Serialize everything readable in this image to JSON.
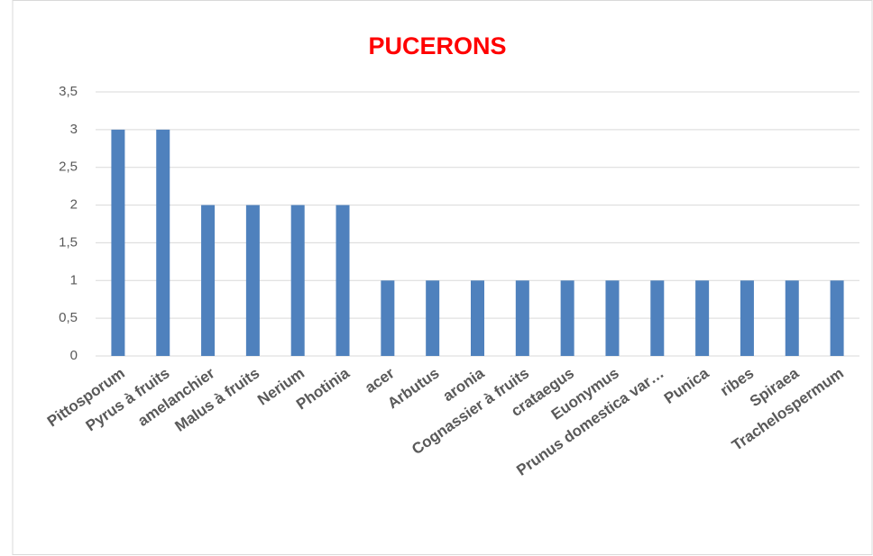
{
  "chart_data": {
    "type": "bar",
    "title": "PUCERONS",
    "categories": [
      "Pittosporum",
      "Pyrus à fruits",
      "amelanchier",
      "Malus à fruits",
      "Nerium",
      "Photinia",
      "acer",
      "Arbutus",
      "aronia",
      "Cognassier à fruits",
      "crataegus",
      "Euonymus",
      "Prunus domestica var…",
      "Punica",
      "ribes",
      "Spiraea",
      "Trachelospermum"
    ],
    "values": [
      3,
      3,
      2,
      2,
      2,
      2,
      1,
      1,
      1,
      1,
      1,
      1,
      1,
      1,
      1,
      1,
      1
    ],
    "color": "#4f81bd",
    "ylim": [
      0,
      3.5
    ],
    "yticks": [
      0,
      {
        "value": 0.5,
        "label": "0,5"
      },
      1,
      {
        "value": 1.5,
        "label": "1,5"
      },
      2,
      {
        "value": 2.5,
        "label": "2,5"
      },
      3,
      {
        "value": 3.5,
        "label": "3,5"
      }
    ],
    "grid": true
  }
}
